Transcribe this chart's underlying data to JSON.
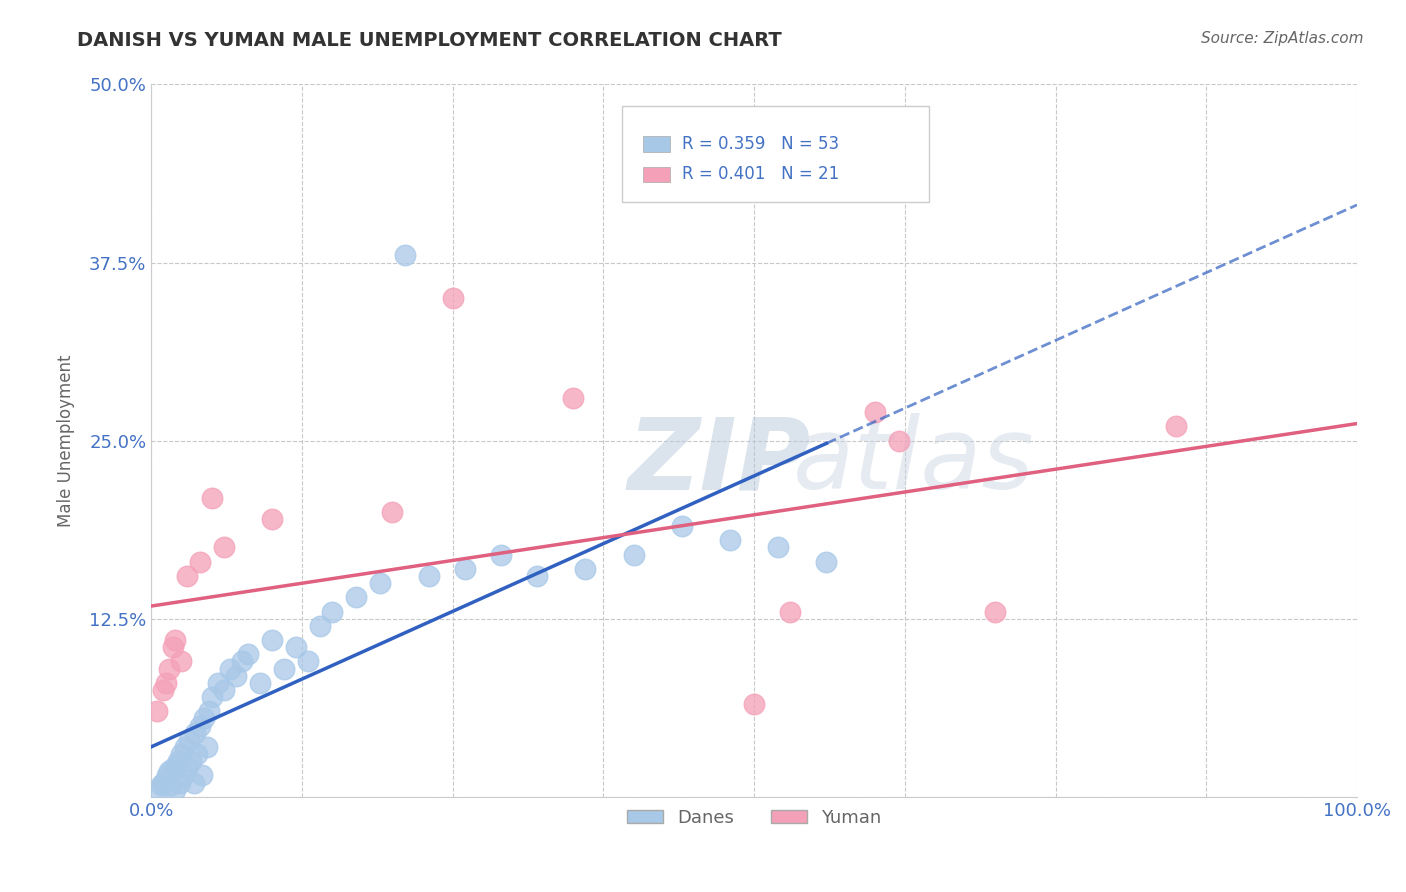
{
  "title": "DANISH VS YUMAN MALE UNEMPLOYMENT CORRELATION CHART",
  "source": "Source: ZipAtlas.com",
  "ylabel": "Male Unemployment",
  "xlim": [
    0,
    1.0
  ],
  "ylim": [
    0,
    0.5
  ],
  "xticks": [
    0.0,
    0.125,
    0.25,
    0.375,
    0.5,
    0.625,
    0.75,
    0.875,
    1.0
  ],
  "xticklabels": [
    "0.0%",
    "",
    "",
    "",
    "",
    "",
    "",
    "",
    "100.0%"
  ],
  "yticks": [
    0.0,
    0.125,
    0.25,
    0.375,
    0.5
  ],
  "yticklabels": [
    "",
    "12.5%",
    "25.0%",
    "37.5%",
    "50.0%"
  ],
  "danes_color": "#a8c8e8",
  "yuman_color": "#f4a0b8",
  "danes_line_color": "#3060c0",
  "yuman_line_color": "#e06080",
  "danes_scatter_x": [
    0.005,
    0.008,
    0.01,
    0.012,
    0.013,
    0.015,
    0.016,
    0.018,
    0.02,
    0.021,
    0.022,
    0.024,
    0.025,
    0.027,
    0.028,
    0.03,
    0.031,
    0.033,
    0.035,
    0.036,
    0.038,
    0.04,
    0.042,
    0.044,
    0.046,
    0.048,
    0.05,
    0.055,
    0.06,
    0.065,
    0.07,
    0.075,
    0.08,
    0.09,
    0.1,
    0.11,
    0.12,
    0.13,
    0.14,
    0.15,
    0.17,
    0.19,
    0.21,
    0.23,
    0.26,
    0.29,
    0.32,
    0.36,
    0.4,
    0.44,
    0.48,
    0.52,
    0.56
  ],
  "danes_scatter_y": [
    0.005,
    0.008,
    0.01,
    0.012,
    0.015,
    0.018,
    0.008,
    0.02,
    0.005,
    0.022,
    0.025,
    0.01,
    0.03,
    0.015,
    0.035,
    0.02,
    0.04,
    0.025,
    0.01,
    0.045,
    0.03,
    0.05,
    0.015,
    0.055,
    0.035,
    0.06,
    0.07,
    0.08,
    0.075,
    0.09,
    0.085,
    0.095,
    0.1,
    0.08,
    0.11,
    0.09,
    0.105,
    0.095,
    0.12,
    0.13,
    0.14,
    0.15,
    0.38,
    0.155,
    0.16,
    0.17,
    0.155,
    0.16,
    0.17,
    0.19,
    0.18,
    0.175,
    0.165
  ],
  "yuman_scatter_x": [
    0.005,
    0.01,
    0.012,
    0.015,
    0.018,
    0.02,
    0.025,
    0.03,
    0.04,
    0.05,
    0.06,
    0.1,
    0.2,
    0.25,
    0.35,
    0.5,
    0.53,
    0.6,
    0.62,
    0.7,
    0.85
  ],
  "yuman_scatter_y": [
    0.06,
    0.075,
    0.08,
    0.09,
    0.105,
    0.11,
    0.095,
    0.155,
    0.165,
    0.21,
    0.175,
    0.195,
    0.2,
    0.35,
    0.28,
    0.065,
    0.13,
    0.27,
    0.25,
    0.13,
    0.26
  ],
  "background_color": "#ffffff",
  "grid_color": "#c8c8c8",
  "title_color": "#333333",
  "source_color": "#666666",
  "axis_label_color": "#666666",
  "tick_color": "#4472c4",
  "legend_text_color": "#4472c4",
  "watermark_zip_color": "#c8d4e8",
  "watermark_atlas_color": "#c8d0e0"
}
